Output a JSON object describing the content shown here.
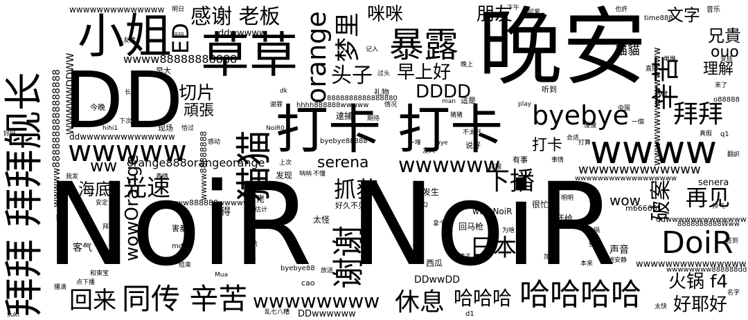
{
  "words": [
    {
      "text": "NoiR",
      "color": "#7ad151",
      "v": false
    },
    {
      "text": "NoiR",
      "color": "#7ad151",
      "v": false
    },
    {
      "text": "晚安",
      "color": "#4ac16d",
      "v": false
    },
    {
      "text": "DD",
      "color": "#472c7a",
      "v": false
    },
    {
      "text": "拜拜 拜拜舰长",
      "color": "#482173",
      "v": true
    },
    {
      "text": "打卡 打卡",
      "color": "#277f8e",
      "v": false
    },
    {
      "text": "小姐",
      "color": "#433e85",
      "v": false
    },
    {
      "text": "草草",
      "color": "#22a884",
      "v": false
    },
    {
      "text": "猫猫",
      "color": "#1e9c89",
      "v": true
    },
    {
      "text": "wwww",
      "color": "#440154",
      "v": false
    },
    {
      "text": "暴露",
      "color": "#2ab07f",
      "v": false
    },
    {
      "text": "谢谢",
      "color": "#3b528b",
      "v": true
    },
    {
      "text": "wwwww",
      "color": "#3e4a89",
      "v": false
    },
    {
      "text": "DoiR",
      "color": "#31688e",
      "v": false
    },
    {
      "text": "辛苦",
      "color": "#35b779",
      "v": true
    },
    {
      "text": "orange",
      "color": "#38588c",
      "v": true
    },
    {
      "text": "哈哈哈哈",
      "color": "#25848e",
      "v": false
    },
    {
      "text": "同传 辛苦",
      "color": "#355f8d",
      "v": false
    },
    {
      "text": "梦里",
      "color": "#5ec962",
      "v": true
    },
    {
      "text": "byebye",
      "color": "#2d708e",
      "v": false
    },
    {
      "text": "拜拜",
      "color": "#46337e",
      "v": false
    },
    {
      "text": "光速",
      "color": "#3e4989",
      "v": false
    },
    {
      "text": "wowOrange",
      "color": "#2a768e",
      "v": true
    },
    {
      "text": "感谢 老板",
      "color": "#2c728e",
      "v": false
    },
    {
      "text": "休息",
      "color": "#453781",
      "v": false
    },
    {
      "text": "wwwwwwww",
      "color": "#86d549",
      "v": false
    },
    {
      "text": "wwwwww",
      "color": "#2d718e",
      "v": false
    },
    {
      "text": "下播",
      "color": "#440154",
      "v": false
    },
    {
      "text": "回来",
      "color": "#3b528b",
      "v": false
    },
    {
      "text": "日本",
      "color": "#33638d",
      "v": false
    },
    {
      "text": "破案",
      "color": "#3e4c8a",
      "v": true
    },
    {
      "text": "头子",
      "color": "#404688",
      "v": false
    },
    {
      "text": "再见",
      "color": "#a8db34",
      "v": false
    },
    {
      "text": "抓获",
      "color": "#440154",
      "v": false
    },
    {
      "text": "哈哈哈",
      "color": "#b5de2b",
      "v": false
    },
    {
      "text": "火锅 f4",
      "color": "#287c8e",
      "v": false
    },
    {
      "text": "好耶好",
      "color": "#98d83e",
      "v": false
    },
    {
      "text": "ED",
      "color": "#3f4889",
      "v": true
    },
    {
      "text": "早上好",
      "color": "#a2da37",
      "v": false
    },
    {
      "text": "朋友",
      "color": "#482878",
      "v": false
    },
    {
      "text": "咪咪",
      "color": "#46337e",
      "v": false
    },
    {
      "text": "DDDD",
      "color": "#414487",
      "v": false
    },
    {
      "text": "切片",
      "color": "#3b528b",
      "v": false
    },
    {
      "text": "海底",
      "color": "#3b528b",
      "v": false
    },
    {
      "text": "serena",
      "color": "#3a538b",
      "v": false
    },
    {
      "text": "wwwwwwwwwwww",
      "color": "#20a486",
      "v": false
    },
    {
      "text": "ww",
      "color": "#482475",
      "v": false
    },
    {
      "text": "文字",
      "color": "#433e85",
      "v": false
    },
    {
      "text": "兄貴",
      "color": "#404588",
      "v": false
    },
    {
      "text": "ouo",
      "color": "#440154",
      "v": false
    },
    {
      "text": "理解",
      "color": "#46337e",
      "v": false
    },
    {
      "text": "頑張",
      "color": "#3b528b",
      "v": false
    },
    {
      "text": "wow",
      "color": "#33638d",
      "v": false
    },
    {
      "text": "打卡",
      "color": "#b5de2b",
      "v": false
    },
    {
      "text": "貓貓",
      "color": "#433e85",
      "v": false
    },
    {
      "text": "orange888orangeorange",
      "color": "#3b528b",
      "v": false
    },
    {
      "text": "wwwwwwwwwwwwwww",
      "color": "#26828e",
      "v": true
    },
    {
      "text": "WWWWWDDWW",
      "color": "#2d708e",
      "v": true
    },
    {
      "text": "wwww88888888888",
      "color": "#33638d",
      "v": false
    },
    {
      "text": "ddwwwww",
      "color": "#3e4a89",
      "v": false
    },
    {
      "text": "ddwwwwwwwwwwwwww",
      "color": "#404588",
      "v": false
    },
    {
      "text": "wwwww8888888888888888",
      "color": "#482878",
      "v": true
    },
    {
      "text": "DDwwDD",
      "color": "#6ccd5a",
      "v": false
    },
    {
      "text": "DDwwwwww",
      "color": "#3b528b",
      "v": false
    },
    {
      "text": "wwwwwwwwwwwwww",
      "color": "#20a486",
      "v": false
    },
    {
      "text": "wwwwwwwwwwwwwww",
      "color": "#24868e",
      "v": false
    },
    {
      "text": "wwwNoiR",
      "color": "#31688e",
      "v": false
    },
    {
      "text": "ddwwwwwwwwwwwww",
      "color": "#3e4a89",
      "v": false
    },
    {
      "text": "wwwww888888wwwwww",
      "color": "#433e85",
      "v": false
    },
    {
      "text": "8888888888Www",
      "color": "#482878",
      "v": false
    },
    {
      "text": "wwwwwwww888888dd",
      "color": "#3b528b",
      "v": false
    },
    {
      "text": "wwwwwwwwwwwwwwwwww",
      "color": "#2a788e",
      "v": false
    },
    {
      "text": "wwww88888888",
      "color": "#cde11d",
      "v": true
    },
    {
      "text": "m666661",
      "color": "#3e4a89",
      "v": false
    },
    {
      "text": "senera",
      "color": "#3b528b",
      "v": false
    },
    {
      "text": "hhhh888888wwwww",
      "color": "#482878",
      "v": false
    },
    {
      "text": "8888888888888880",
      "color": "#7ad151",
      "v": false
    },
    {
      "text": "byebye88888",
      "color": "#7ad151",
      "v": false
    },
    {
      "text": "byebye88",
      "color": "#3e4a89",
      "v": false
    },
    {
      "text": "o88888",
      "color": "#3e4a89",
      "v": false
    },
    {
      "text": "time888",
      "color": "#3e4a89",
      "v": false
    },
    {
      "text": "wt",
      "color": "#440154",
      "v": false
    },
    {
      "text": "q1",
      "color": "#482878",
      "v": false
    },
    {
      "text": "d1",
      "color": "#482878",
      "v": false
    },
    {
      "text": "cao",
      "color": "#3b528b",
      "v": false
    },
    {
      "text": "md",
      "color": "#440154",
      "v": false
    },
    {
      "text": "dk",
      "color": "#cde11d",
      "v": false
    },
    {
      "text": "man",
      "color": "#3b528b",
      "v": false
    },
    {
      "text": "bye",
      "color": "#3b528b",
      "v": false
    },
    {
      "text": "play",
      "color": "#cde11d",
      "v": false
    },
    {
      "text": "hihi1",
      "color": "#3b528b",
      "v": false
    },
    {
      "text": "NoiR0",
      "color": "#3b528b",
      "v": false
    },
    {
      "text": "Mua",
      "color": "#b5de2b",
      "v": false
    },
    {
      "text": "QrQ",
      "color": "#cde11d",
      "v": false
    },
    {
      "text": "suki",
      "color": "#31688e",
      "v": false
    },
    {
      "text": "音乐",
      "color": "#3b528b",
      "v": false
    },
    {
      "text": "可爱",
      "color": "#3b528b",
      "v": false
    },
    {
      "text": "也許",
      "color": "#3b528b",
      "v": false
    },
    {
      "text": "明日",
      "color": "#3b528b",
      "v": false
    },
    {
      "text": "下午",
      "color": "#3b528b",
      "v": false
    },
    {
      "text": "晚上",
      "color": "#3b528b",
      "v": false
    },
    {
      "text": "直播",
      "color": "#3b528b",
      "v": false
    },
    {
      "text": "单推",
      "color": "#3b528b",
      "v": false
    },
    {
      "text": "变成",
      "color": "#3b528b",
      "v": false
    },
    {
      "text": "今晚",
      "color": "#3b528b",
      "v": false
    },
    {
      "text": "這是",
      "color": "#3b528b",
      "v": false
    },
    {
      "text": "现场",
      "color": "#3b528b",
      "v": false
    },
    {
      "text": "恰过",
      "color": "#3b528b",
      "v": false
    },
    {
      "text": "谢罪",
      "color": "#3b528b",
      "v": false
    },
    {
      "text": "逮捕",
      "color": "#3b528b",
      "v": false
    },
    {
      "text": "期待",
      "color": "#3b528b",
      "v": false
    },
    {
      "text": "猪猪",
      "color": "#3b528b",
      "v": false
    },
    {
      "text": "不太好",
      "color": "#3b528b",
      "v": false
    },
    {
      "text": "说好",
      "color": "#3b528b",
      "v": false
    },
    {
      "text": "合适",
      "color": "#3b528b",
      "v": false
    },
    {
      "text": "有事",
      "color": "#3b528b",
      "v": false
    },
    {
      "text": "上次",
      "color": "#3b528b",
      "v": false
    },
    {
      "text": "发现",
      "color": "#b5de2b",
      "v": false
    },
    {
      "text": "不懂",
      "color": "#3b528b",
      "v": false
    },
    {
      "text": "呐呐",
      "color": "#3b528b",
      "v": false
    },
    {
      "text": "花園",
      "color": "#3b528b",
      "v": false
    },
    {
      "text": "事情",
      "color": "#3b528b",
      "v": false
    },
    {
      "text": "发生",
      "color": "#3b528b",
      "v": false
    },
    {
      "text": "很忙",
      "color": "#3b528b",
      "v": false
    },
    {
      "text": "还给",
      "color": "#3b528b",
      "v": false
    },
    {
      "text": "清佬",
      "color": "#3b528b",
      "v": false
    },
    {
      "text": "估计",
      "color": "#b5de2b",
      "v": false
    },
    {
      "text": "记得",
      "color": "#b5de2b",
      "v": false
    },
    {
      "text": "好久不见",
      "color": "#3b528b",
      "v": false
    },
    {
      "text": "太怪",
      "color": "#3b528b",
      "v": false
    },
    {
      "text": "回马枪",
      "color": "#3b528b",
      "v": false
    },
    {
      "text": "客气",
      "color": "#3b528b",
      "v": false
    },
    {
      "text": "害羞",
      "color": "#3b528b",
      "v": false
    },
    {
      "text": "结束",
      "color": "#3b528b",
      "v": false
    },
    {
      "text": "表情",
      "color": "#3b528b",
      "v": false
    },
    {
      "text": "我发",
      "color": "#3b528b",
      "v": false
    },
    {
      "text": "交上",
      "color": "#3b528b",
      "v": false
    },
    {
      "text": "图片",
      "color": "#3b528b",
      "v": false
    },
    {
      "text": "放送",
      "color": "#3b528b",
      "v": false
    },
    {
      "text": "西瓜",
      "color": "#3b528b",
      "v": false
    },
    {
      "text": "声音",
      "color": "#3b528b",
      "v": false
    },
    {
      "text": "加油",
      "color": "#3b528b",
      "v": false
    },
    {
      "text": "本来",
      "color": "#3b528b",
      "v": false
    },
    {
      "text": "地安静",
      "color": "#3b528b",
      "v": false
    },
    {
      "text": "和東宝",
      "color": "#3b528b",
      "v": false
    },
    {
      "text": "拜托",
      "color": "#3b528b",
      "v": false
    },
    {
      "text": "播滴",
      "color": "#3b528b",
      "v": false
    },
    {
      "text": "乱七八糟",
      "color": "#3b528b",
      "v": false
    },
    {
      "text": "长安",
      "color": "#3b528b",
      "v": false
    },
    {
      "text": "早大",
      "color": "#b5de2b",
      "v": false
    },
    {
      "text": "友達",
      "color": "#3b528b",
      "v": false
    },
    {
      "text": "玛玛",
      "color": "#3b528b",
      "v": false
    },
    {
      "text": "过头",
      "color": "#3b528b",
      "v": false
    },
    {
      "text": "记入",
      "color": "#3b528b",
      "v": false
    },
    {
      "text": "礼物",
      "color": "#3b528b",
      "v": false
    },
    {
      "text": "听到",
      "color": "#3b528b",
      "v": false
    },
    {
      "text": "中国",
      "color": "#3b528b",
      "v": false
    },
    {
      "text": "一個",
      "color": "#3b528b",
      "v": false
    },
    {
      "text": "一堆",
      "color": "#3b528b",
      "v": false
    },
    {
      "text": "友人",
      "color": "#3b528b",
      "v": false
    },
    {
      "text": "情况",
      "color": "#3b528b",
      "v": false
    },
    {
      "text": "拿个",
      "color": "#3b528b",
      "v": false
    },
    {
      "text": "牌子",
      "color": "#3b528b",
      "v": false
    },
    {
      "text": "为啥",
      "color": "#b5de2b",
      "v": false
    },
    {
      "text": "帅气",
      "color": "#3b528b",
      "v": false
    },
    {
      "text": "签到",
      "color": "#3b528b",
      "v": false
    },
    {
      "text": "翻訳",
      "color": "#3b528b",
      "v": false
    },
    {
      "text": "名字",
      "color": "#3b528b",
      "v": false
    },
    {
      "text": "太快",
      "color": "#3b528b",
      "v": false
    },
    {
      "text": "火锅",
      "color": "#3b528b",
      "v": false
    },
    {
      "text": "整了",
      "color": "#3b528b",
      "v": false
    },
    {
      "text": "打算",
      "color": "#3b528b",
      "v": false
    },
    {
      "text": "感动",
      "color": "#b5de2b",
      "v": false
    },
    {
      "text": "下次",
      "color": "#b5de2b",
      "v": false
    },
    {
      "text": "芜湖",
      "color": "#3b528b",
      "v": false
    },
    {
      "text": "安定",
      "color": "#3b528b",
      "v": false
    },
    {
      "text": "好好",
      "color": "#b5de2b",
      "v": false
    },
    {
      "text": "点下播",
      "color": "#3b528b",
      "v": false
    },
    {
      "text": "来了",
      "color": "#3b528b",
      "v": false
    },
    {
      "text": "明明",
      "color": "#3b528b",
      "v": false
    },
    {
      "text": "慢慢",
      "color": "#3b528b",
      "v": false
    },
    {
      "text": "真假",
      "color": "#3b528b",
      "v": false
    }
  ]
}
